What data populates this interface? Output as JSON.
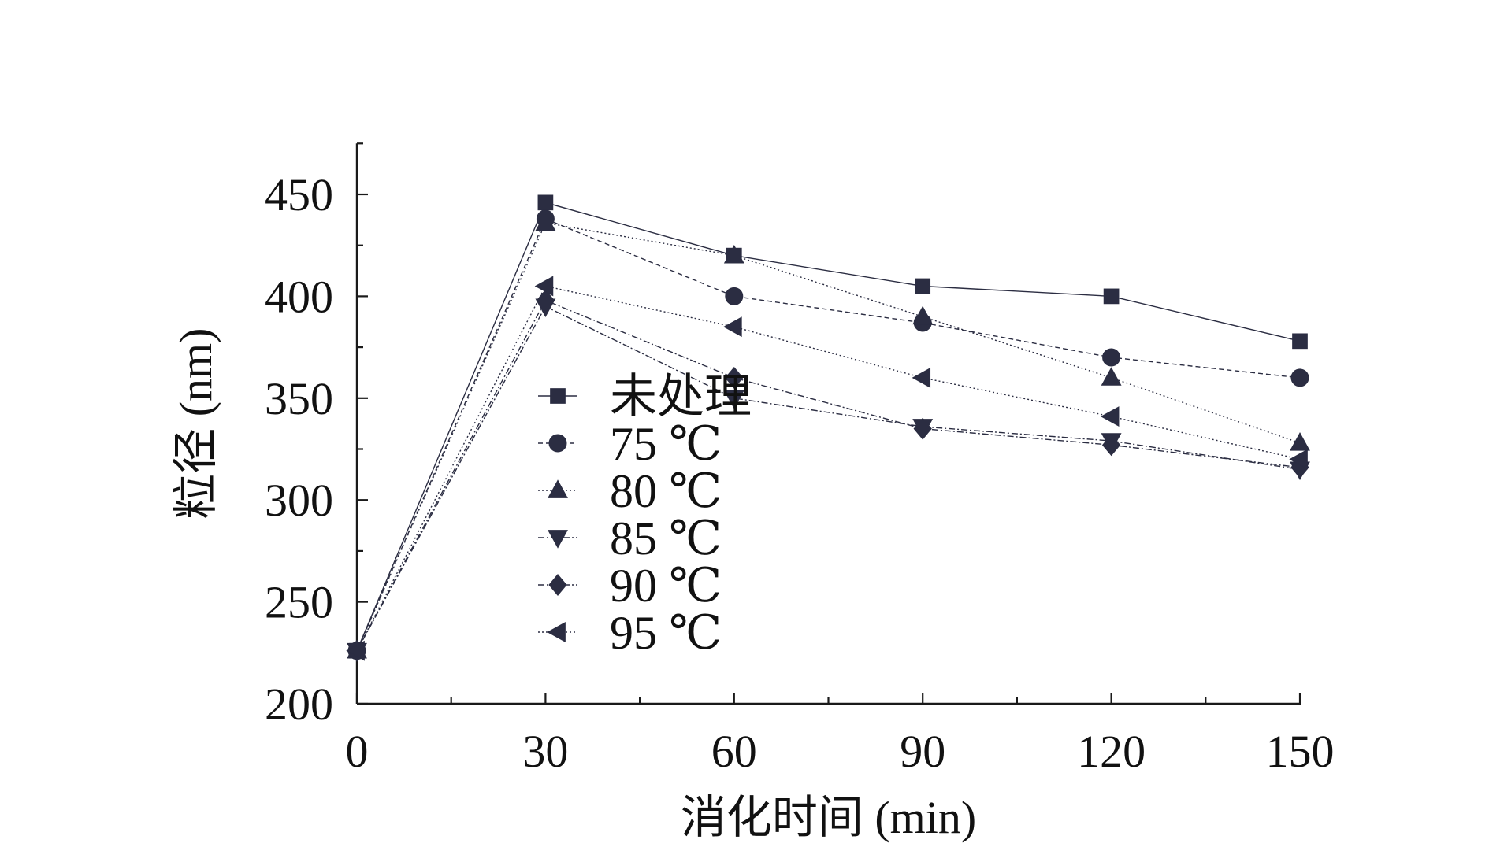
{
  "chart_data": {
    "type": "line",
    "xlabel": "消化时间 (min)",
    "ylabel": "粒径 (nm)",
    "x": [
      0,
      30,
      60,
      90,
      120,
      150
    ],
    "xlim": [
      0,
      150
    ],
    "ylim": [
      200,
      475
    ],
    "xticks": [
      "0",
      "30",
      "60",
      "90",
      "120",
      "150"
    ],
    "yticks": [
      "200",
      "250",
      "300",
      "350",
      "400",
      "450"
    ],
    "grid": false,
    "legend_position": "center-left",
    "series": [
      {
        "name": "未处理",
        "marker": "square",
        "dash": "solid",
        "values": [
          226,
          446,
          420,
          405,
          400,
          378
        ]
      },
      {
        "name": "75 ℃",
        "marker": "circle",
        "dash": "dashed",
        "values": [
          226,
          438,
          400,
          387,
          370,
          360
        ]
      },
      {
        "name": "80 ℃",
        "marker": "triangle-up",
        "dash": "dotted",
        "values": [
          226,
          436,
          420,
          390,
          360,
          328
        ]
      },
      {
        "name": "85 ℃",
        "marker": "triangle-down",
        "dash": "dashdot",
        "values": [
          226,
          395,
          350,
          336,
          329,
          315
        ]
      },
      {
        "name": "90 ℃",
        "marker": "diamond",
        "dash": "dashdot",
        "values": [
          226,
          398,
          360,
          335,
          327,
          316
        ]
      },
      {
        "name": "95 ℃",
        "marker": "triangle-left",
        "dash": "dotted",
        "values": [
          226,
          405,
          385,
          360,
          341,
          320
        ]
      }
    ],
    "colors": {
      "ink": "#2b2d42",
      "axis": "#1a1a1a"
    }
  }
}
